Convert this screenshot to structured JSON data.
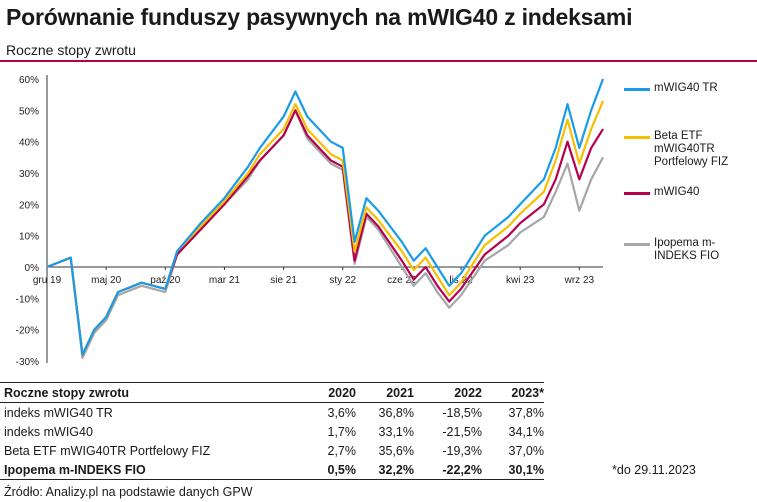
{
  "title": "Porównanie funduszy pasywnych na mWIG40 z indeksami",
  "subtitle": "Roczne stopy zwrotu",
  "chart_data": {
    "type": "line",
    "ylim": [
      -30,
      60
    ],
    "y_ticks": [
      "60%",
      "50%",
      "40%",
      "30%",
      "20%",
      "10%",
      "0%",
      "-10%",
      "-20%",
      "-30%"
    ],
    "x_ticks": [
      "gru 19",
      "maj 20",
      "paź 20",
      "mar 21",
      "sie 21",
      "sty 22",
      "cze 22",
      "lis 22",
      "kwi 23",
      "wrz 23"
    ],
    "x_range": [
      "2019-12",
      "2023-11"
    ],
    "grid": false,
    "legend_position": "right",
    "series": [
      {
        "name": "mWIG40 TR",
        "color": "#1a9be8",
        "x": [
          "2019-12",
          "2020-02",
          "2020-03",
          "2020-04",
          "2020-05",
          "2020-06",
          "2020-08",
          "2020-10",
          "2020-11",
          "2021-01",
          "2021-03",
          "2021-05",
          "2021-06",
          "2021-08",
          "2021-09",
          "2021-10",
          "2021-12",
          "2022-01",
          "2022-02",
          "2022-03",
          "2022-04",
          "2022-06",
          "2022-07",
          "2022-08",
          "2022-09",
          "2022-10",
          "2022-11",
          "2023-01",
          "2023-03",
          "2023-04",
          "2023-06",
          "2023-07",
          "2023-08",
          "2023-09",
          "2023-10",
          "2023-11"
        ],
        "values": [
          0,
          3,
          -28,
          -20,
          -16,
          -8,
          -5,
          -7,
          5,
          14,
          22,
          32,
          38,
          48,
          56,
          48,
          40,
          38,
          8,
          22,
          18,
          8,
          2,
          6,
          0,
          -6,
          -2,
          10,
          16,
          20,
          28,
          38,
          52,
          38,
          50,
          60
        ]
      },
      {
        "name": "Beta ETF mWIG40TR Portfelowy FIZ",
        "color": "#f7bf00",
        "x": [
          "2019-12",
          "2020-02",
          "2020-03",
          "2020-04",
          "2020-05",
          "2020-06",
          "2020-08",
          "2020-10",
          "2020-11",
          "2021-01",
          "2021-03",
          "2021-05",
          "2021-06",
          "2021-08",
          "2021-09",
          "2021-10",
          "2021-12",
          "2022-01",
          "2022-02",
          "2022-03",
          "2022-04",
          "2022-06",
          "2022-07",
          "2022-08",
          "2022-09",
          "2022-10",
          "2022-11",
          "2023-01",
          "2023-03",
          "2023-04",
          "2023-06",
          "2023-07",
          "2023-08",
          "2023-09",
          "2023-10",
          "2023-11"
        ],
        "values": [
          0,
          3,
          -28,
          -20,
          -16,
          -8,
          -5,
          -7,
          5,
          13,
          21,
          30,
          36,
          44,
          52,
          44,
          36,
          34,
          5,
          19,
          15,
          5,
          -1,
          3,
          -3,
          -9,
          -5,
          7,
          13,
          17,
          24,
          34,
          47,
          33,
          44,
          53
        ]
      },
      {
        "name": "mWIG40",
        "color": "#b5004e",
        "x": [
          "2019-12",
          "2020-02",
          "2020-03",
          "2020-04",
          "2020-05",
          "2020-06",
          "2020-08",
          "2020-10",
          "2020-11",
          "2021-01",
          "2021-03",
          "2021-05",
          "2021-06",
          "2021-08",
          "2021-09",
          "2021-10",
          "2021-12",
          "2022-01",
          "2022-02",
          "2022-03",
          "2022-04",
          "2022-06",
          "2022-07",
          "2022-08",
          "2022-09",
          "2022-10",
          "2022-11",
          "2023-01",
          "2023-03",
          "2023-04",
          "2023-06",
          "2023-07",
          "2023-08",
          "2023-09",
          "2023-10",
          "2023-11"
        ],
        "values": [
          0,
          3,
          -28,
          -20,
          -16,
          -8,
          -5,
          -7,
          4,
          12,
          20,
          29,
          34,
          42,
          50,
          42,
          34,
          32,
          2,
          17,
          13,
          2,
          -4,
          0,
          -6,
          -11,
          -7,
          4,
          10,
          14,
          20,
          28,
          40,
          28,
          38,
          44
        ]
      },
      {
        "name": "Ipopema m-INDEKS FIO",
        "color": "#a6a6a6",
        "x": [
          "2019-12",
          "2020-02",
          "2020-03",
          "2020-04",
          "2020-05",
          "2020-06",
          "2020-08",
          "2020-10",
          "2020-11",
          "2021-01",
          "2021-03",
          "2021-05",
          "2021-06",
          "2021-08",
          "2021-09",
          "2021-10",
          "2021-12",
          "2022-01",
          "2022-02",
          "2022-03",
          "2022-04",
          "2022-06",
          "2022-07",
          "2022-08",
          "2022-09",
          "2022-10",
          "2022-11",
          "2023-01",
          "2023-03",
          "2023-04",
          "2023-06",
          "2023-07",
          "2023-08",
          "2023-09",
          "2023-10",
          "2023-11"
        ],
        "values": [
          0,
          3,
          -29,
          -21,
          -17,
          -9,
          -6,
          -8,
          4,
          12,
          20,
          28,
          34,
          42,
          50,
          41,
          33,
          31,
          1,
          16,
          12,
          0,
          -6,
          -2,
          -8,
          -13,
          -9,
          2,
          7,
          11,
          16,
          24,
          33,
          18,
          28,
          35
        ]
      }
    ]
  },
  "table": {
    "header": [
      "Roczne stopy zwrotu",
      "2020",
      "2021",
      "2022",
      "2023*"
    ],
    "rows": [
      {
        "label": "indeks mWIG40 TR",
        "values": [
          "3,6%",
          "36,8%",
          "-18,5%",
          "37,8%"
        ]
      },
      {
        "label": "indeks mWIG40",
        "values": [
          "1,7%",
          "33,1%",
          "-21,5%",
          "34,1%"
        ]
      },
      {
        "label": "Beta ETF mWIG40TR Portfelowy FIZ",
        "values": [
          "2,7%",
          "35,6%",
          "-19,3%",
          "37,0%"
        ]
      },
      {
        "label": "Ipopema m-INDEKS FIO",
        "values": [
          "0,5%",
          "32,2%",
          "-22,2%",
          "30,1%"
        ]
      }
    ]
  },
  "note": "*do 29.11.2023",
  "source": "Źródło: Analizy.pl na podstawie danych GPW"
}
